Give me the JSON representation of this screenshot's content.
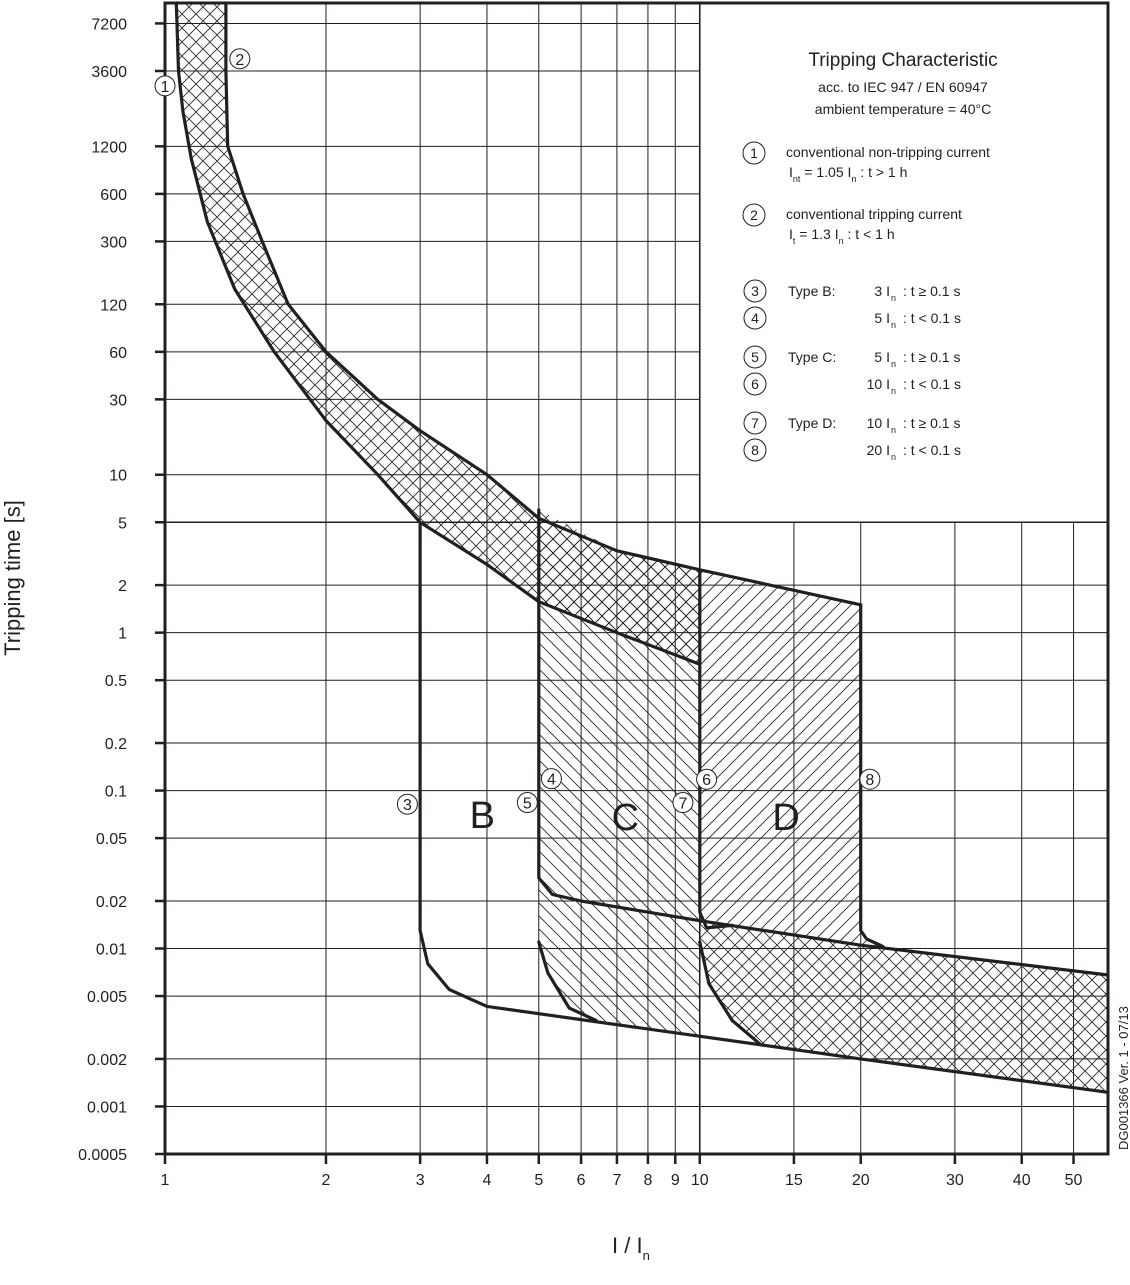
{
  "chart_data": {
    "type": "line",
    "title": "Tripping Characteristic",
    "subtitle": [
      "acc. to IEC 947 / EN 60947",
      "ambient temperature = 40°C"
    ],
    "xlabel": "I / In",
    "xlabel_main": "I / I",
    "xlabel_sub": "n",
    "ylabel": "Tripping time [s]",
    "x_scale": "log",
    "y_scale": "log",
    "xlim": [
      1,
      58
    ],
    "ylim": [
      0.0005,
      9700
    ],
    "grid": true,
    "x_ticks": [
      1,
      2,
      3,
      4,
      5,
      6,
      7,
      8,
      9,
      10,
      15,
      20,
      30,
      40,
      50
    ],
    "y_ticks": [
      7200,
      3600,
      1200,
      600,
      300,
      120,
      60,
      30,
      10,
      5,
      2,
      1,
      0.5,
      0.2,
      0.1,
      0.05,
      0.02,
      0.01,
      0.005,
      0.002,
      0.001,
      0.0005
    ],
    "y_tick_labels": [
      "7200",
      "3600",
      "1200",
      "600",
      "300",
      "120",
      "60",
      "30",
      "10",
      "5",
      "2",
      "1",
      "0.5",
      "0.2",
      "0.1",
      "0.05",
      "0.02",
      "0.01",
      "0.005",
      "0.002",
      "0.001",
      "0.0005"
    ],
    "curves": [
      {
        "id": "thermal-lower",
        "points": [
          [
            1.05,
            9700
          ],
          [
            1.06,
            3600
          ],
          [
            1.08,
            2000
          ],
          [
            1.12,
            1000
          ],
          [
            1.2,
            400
          ],
          [
            1.35,
            150
          ],
          [
            1.6,
            60
          ],
          [
            2,
            22
          ],
          [
            2.5,
            10
          ],
          [
            3,
            5
          ],
          [
            4,
            2.7
          ],
          [
            5,
            1.57
          ],
          [
            7,
            1
          ],
          [
            10,
            0.63
          ]
        ]
      },
      {
        "id": "thermal-upper",
        "points": [
          [
            1.3,
            9700
          ],
          [
            1.3,
            3600
          ],
          [
            1.31,
            1200
          ],
          [
            1.4,
            600
          ],
          [
            1.52,
            300
          ],
          [
            1.7,
            120
          ],
          [
            2,
            60
          ],
          [
            2.5,
            30
          ],
          [
            3,
            19
          ],
          [
            4,
            10
          ],
          [
            5,
            5.3
          ],
          [
            7,
            3.3
          ],
          [
            10,
            2.5
          ],
          [
            20,
            1.5
          ]
        ]
      },
      {
        "id": "type-b",
        "points": [
          [
            3,
            5
          ],
          [
            3,
            0.013
          ],
          [
            3.1,
            0.008
          ],
          [
            3.4,
            0.0055
          ],
          [
            4,
            0.0043
          ],
          [
            20,
            0.002
          ],
          [
            58,
            0.00123
          ]
        ]
      },
      {
        "id": "type-c-upper",
        "points": [
          [
            5,
            6
          ],
          [
            5,
            0.028
          ],
          [
            5.3,
            0.022
          ],
          [
            6,
            0.02
          ],
          [
            10,
            0.015
          ],
          [
            20,
            0.0105
          ],
          [
            58,
            0.0068
          ]
        ]
      },
      {
        "id": "type-c-lower",
        "points": [
          [
            5,
            0.011
          ],
          [
            5.2,
            0.007
          ],
          [
            5.7,
            0.0042
          ],
          [
            6.4,
            0.0035
          ]
        ]
      },
      {
        "id": "type-d-upper",
        "points": [
          [
            10,
            2.5
          ],
          [
            10,
            0.017
          ],
          [
            10.3,
            0.0135
          ],
          [
            11.5,
            0.014
          ]
        ]
      },
      {
        "id": "type-d-lower",
        "points": [
          [
            10,
            0.011
          ],
          [
            10.4,
            0.006
          ],
          [
            11.5,
            0.0035
          ],
          [
            13,
            0.00246
          ]
        ]
      },
      {
        "id": "type-d-right",
        "points": [
          [
            20,
            1.5
          ],
          [
            20,
            0.013
          ],
          [
            20.5,
            0.0115
          ],
          [
            22,
            0.0103
          ]
        ]
      }
    ],
    "region_labels": [
      {
        "text": "B",
        "x": 3.92,
        "y": 0.07
      },
      {
        "text": "C",
        "x": 7.26,
        "y": 0.068
      },
      {
        "text": "D",
        "x": 14.5,
        "y": 0.068
      }
    ],
    "markers": [
      {
        "n": "1",
        "x": 1.0,
        "y": 2900
      },
      {
        "n": "2",
        "x": 1.38,
        "y": 4300
      },
      {
        "n": "3",
        "x": 2.84,
        "y": 0.082
      },
      {
        "n": "4",
        "x": 5.28,
        "y": 0.119
      },
      {
        "n": "5",
        "x": 4.76,
        "y": 0.084
      },
      {
        "n": "6",
        "x": 10.3,
        "y": 0.118
      },
      {
        "n": "7",
        "x": 9.3,
        "y": 0.084
      },
      {
        "n": "8",
        "x": 20.8,
        "y": 0.118
      }
    ],
    "legend": {
      "placement": "top-right",
      "items": [
        {
          "n": "1",
          "line1": "conventional non-tripping current",
          "line2": "I",
          "sub": "nt",
          "line2b": " = 1.05 I",
          "sub2": "n",
          "line2c": " :  t > 1 h"
        },
        {
          "n": "2",
          "line1": "conventional tripping current",
          "line2": "I",
          "sub": "t",
          "line2b": " = 1.3 I",
          "sub2": "n",
          "line2c": " :  t < 1 h"
        }
      ],
      "types": [
        {
          "type": "Type B:",
          "rows": [
            {
              "n": "3",
              "mult": "3 I",
              "cond": ": t ≥ 0.1 s"
            },
            {
              "n": "4",
              "mult": "5 I",
              "cond": ": t < 0.1 s"
            }
          ]
        },
        {
          "type": "Type C:",
          "rows": [
            {
              "n": "5",
              "mult": "5 I",
              "cond": ": t ≥ 0.1 s"
            },
            {
              "n": "6",
              "mult": "10 I",
              "cond": ": t < 0.1 s"
            }
          ]
        },
        {
          "type": "Type D:",
          "rows": [
            {
              "n": "7",
              "mult": "10 I",
              "cond": ": t ≥ 0.1 s"
            },
            {
              "n": "8",
              "mult": "20 I",
              "cond": ": t < 0.1 s"
            }
          ]
        }
      ],
      "sub_n": "n"
    },
    "doc_id": "DG001366 Ver. 1 - 07/13",
    "colors": {
      "ink": "#231f20",
      "grid": "#231f20",
      "background": "#ffffff"
    }
  }
}
